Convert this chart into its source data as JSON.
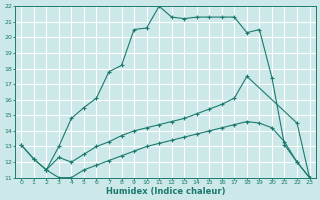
{
  "xlabel": "Humidex (Indice chaleur)",
  "bg_color": "#cce8e8",
  "grid_color": "#ffffff",
  "line_color": "#1a7a6e",
  "xlim": [
    -0.5,
    23.5
  ],
  "ylim": [
    11,
    22
  ],
  "xticks": [
    0,
    1,
    2,
    3,
    4,
    5,
    6,
    7,
    8,
    9,
    10,
    11,
    12,
    13,
    14,
    15,
    16,
    17,
    18,
    19,
    20,
    21,
    22,
    23
  ],
  "yticks": [
    11,
    12,
    13,
    14,
    15,
    16,
    17,
    18,
    19,
    20,
    21,
    22
  ],
  "line1_x": [
    0,
    1,
    2,
    3,
    4,
    5,
    6,
    7,
    8,
    9,
    10,
    11,
    12,
    13,
    14,
    15,
    16,
    17,
    18,
    19,
    20,
    21,
    22,
    23
  ],
  "line1_y": [
    13.1,
    12.2,
    11.5,
    13.0,
    14.8,
    15.5,
    16.1,
    17.8,
    18.2,
    20.5,
    20.6,
    22.0,
    21.3,
    21.2,
    21.3,
    21.3,
    21.3,
    21.3,
    20.3,
    20.5,
    17.4,
    13.1,
    12.0,
    11.0
  ],
  "line2_x": [
    0,
    1,
    2,
    3,
    4,
    5,
    6,
    7,
    8,
    9,
    10,
    11,
    12,
    13,
    14,
    15,
    16,
    17,
    18,
    22,
    23
  ],
  "line2_y": [
    13.1,
    12.2,
    11.5,
    12.3,
    12.0,
    12.5,
    13.0,
    13.3,
    13.7,
    14.0,
    14.2,
    14.4,
    14.6,
    14.8,
    15.1,
    15.4,
    15.7,
    16.1,
    17.5,
    14.5,
    11.0
  ],
  "line3_x": [
    2,
    3,
    4,
    5,
    6,
    7,
    8,
    9,
    10,
    11,
    12,
    13,
    14,
    15,
    16,
    17,
    18,
    19,
    20,
    21,
    22,
    23
  ],
  "line3_y": [
    11.5,
    11.0,
    11.0,
    11.5,
    11.8,
    12.1,
    12.4,
    12.7,
    13.0,
    13.2,
    13.4,
    13.6,
    13.8,
    14.0,
    14.2,
    14.4,
    14.6,
    14.5,
    14.2,
    13.3,
    12.0,
    11.0
  ]
}
